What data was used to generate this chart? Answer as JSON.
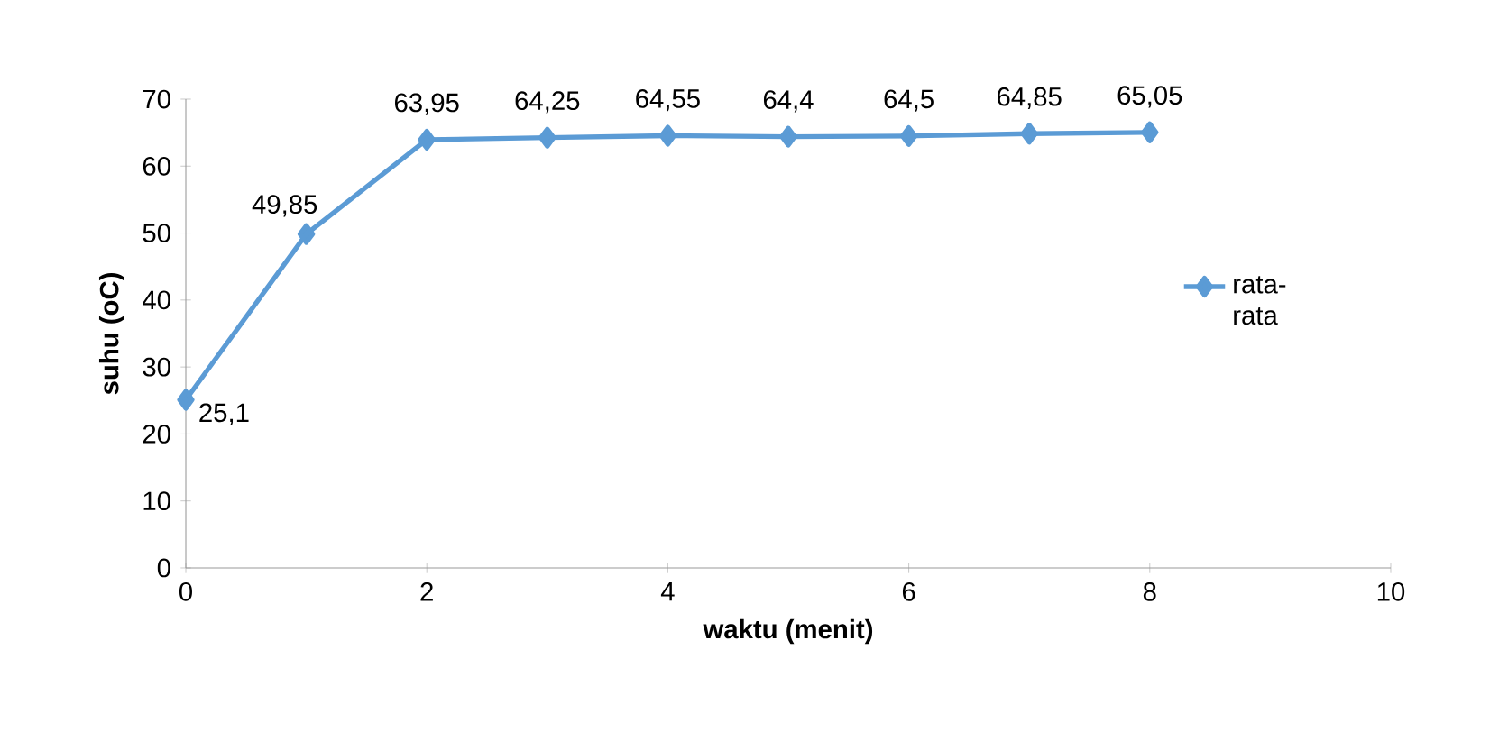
{
  "chart_data": {
    "type": "line",
    "xlabel": "waktu (menit)",
    "ylabel": "suhu (oC)",
    "x": [
      0,
      1,
      2,
      3,
      4,
      5,
      6,
      7,
      8
    ],
    "series": [
      {
        "name": "rata-rata",
        "color": "#5b9bd5",
        "values": [
          25.1,
          49.85,
          63.95,
          64.25,
          64.55,
          64.4,
          64.5,
          64.85,
          65.05
        ],
        "value_labels": [
          "25,1",
          "49,85",
          "63,95",
          "64,25",
          "64,55",
          "64,4",
          "64,5",
          "64,85",
          "65,05"
        ]
      }
    ],
    "xlim": [
      0,
      10
    ],
    "xticks": [
      0,
      2,
      4,
      6,
      8,
      10
    ],
    "ylim": [
      0,
      70
    ],
    "yticks": [
      0,
      10,
      20,
      30,
      40,
      50,
      60,
      70
    ],
    "grid": false,
    "legend": "right",
    "marker": "diamond",
    "line_style": "solid"
  }
}
